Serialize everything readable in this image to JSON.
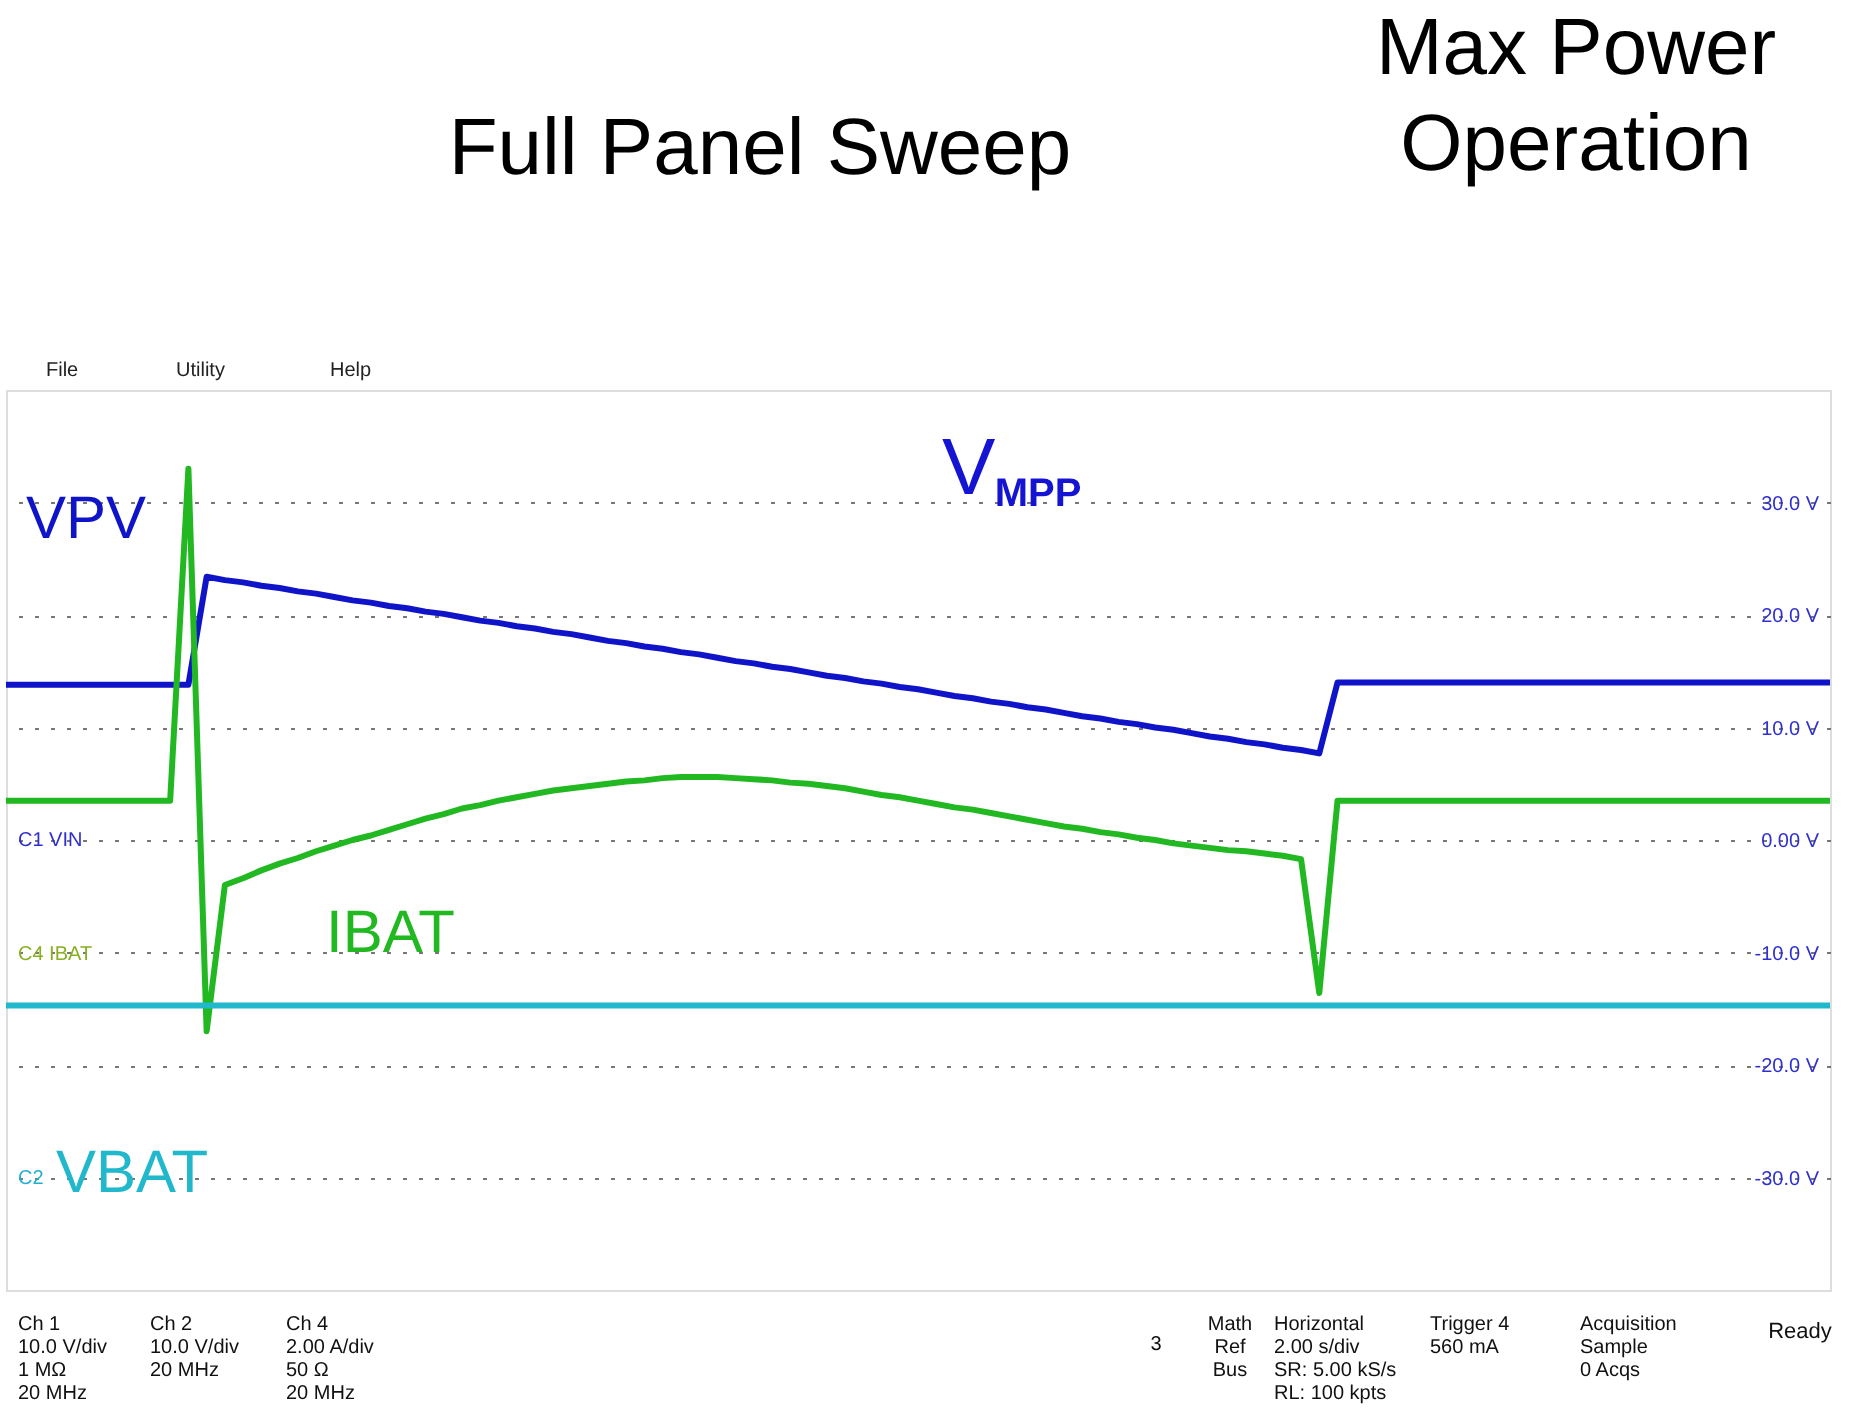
{
  "chart_data": {
    "type": "line",
    "categories": [
      null,
      null,
      null,
      null,
      null,
      null,
      null,
      null,
      null,
      null,
      null,
      null,
      null,
      null,
      null,
      null,
      null,
      null,
      null,
      null,
      null,
      null,
      null,
      null,
      null,
      null,
      null,
      null,
      null,
      null,
      null,
      null,
      null,
      null,
      null,
      null,
      null,
      null,
      null,
      null,
      null,
      null,
      null,
      null,
      null,
      null,
      null,
      null,
      null,
      null,
      null,
      null,
      null,
      null,
      null,
      null,
      null,
      null,
      null,
      null,
      null,
      null,
      null,
      null,
      null,
      null,
      null,
      null,
      null,
      null,
      null,
      null,
      null,
      null,
      null,
      null,
      null,
      null,
      null,
      null,
      null,
      null,
      null,
      null,
      null,
      null,
      null,
      null,
      null,
      null,
      null,
      null,
      null,
      null,
      null,
      null,
      null,
      null,
      null,
      null,
      null
    ],
    "series": [
      {
        "name": "VPV",
        "color": "#0f14c8",
        "values": [
          13.8,
          13.8,
          13.8,
          13.8,
          13.8,
          13.8,
          13.8,
          13.8,
          13.8,
          13.8,
          13.8,
          23.4,
          23.1,
          22.9,
          22.6,
          22.4,
          22.1,
          21.9,
          21.6,
          21.3,
          21.1,
          20.8,
          20.6,
          20.3,
          20.1,
          19.8,
          19.5,
          19.3,
          19.0,
          18.8,
          18.5,
          18.3,
          18.0,
          17.7,
          17.5,
          17.2,
          17.0,
          16.7,
          16.5,
          16.2,
          15.9,
          15.7,
          15.4,
          15.2,
          14.9,
          14.6,
          14.4,
          14.1,
          13.9,
          13.6,
          13.4,
          13.1,
          12.8,
          12.6,
          12.3,
          12.1,
          11.8,
          11.6,
          11.3,
          11.0,
          10.8,
          10.5,
          10.3,
          10.0,
          9.8,
          9.5,
          9.2,
          9.0,
          8.7,
          8.5,
          8.2,
          8.0,
          7.7,
          14.0,
          14.0,
          14.0,
          14.0,
          14.0,
          14.0,
          14.0,
          14.0,
          14.0,
          14.0,
          14.0,
          14.0,
          14.0,
          14.0,
          14.0,
          14.0,
          14.0,
          14.0,
          14.0,
          14.0,
          14.0,
          14.0,
          14.0,
          14.0,
          14.0,
          14.0,
          14.0,
          14.0
        ]
      },
      {
        "name": "IBAT",
        "color": "#22b822",
        "values": [
          3.5,
          3.5,
          3.5,
          3.5,
          3.5,
          3.5,
          3.5,
          3.5,
          3.5,
          3.5,
          33.0,
          -17.0,
          -4.0,
          -3.4,
          -2.7,
          -2.1,
          -1.6,
          -1.0,
          -0.5,
          0.0,
          0.4,
          0.9,
          1.4,
          1.9,
          2.3,
          2.8,
          3.1,
          3.5,
          3.8,
          4.1,
          4.4,
          4.6,
          4.8,
          5.0,
          5.2,
          5.3,
          5.5,
          5.6,
          5.6,
          5.6,
          5.5,
          5.4,
          5.3,
          5.1,
          5.0,
          4.8,
          4.6,
          4.3,
          4.0,
          3.8,
          3.5,
          3.2,
          2.9,
          2.7,
          2.4,
          2.1,
          1.8,
          1.5,
          1.2,
          1.0,
          0.7,
          0.5,
          0.2,
          0.0,
          -0.3,
          -0.5,
          -0.7,
          -0.9,
          -1.0,
          -1.2,
          -1.4,
          -1.7,
          -13.6,
          3.5,
          3.5,
          3.5,
          3.5,
          3.5,
          3.5,
          3.5,
          3.5,
          3.5,
          3.5,
          3.5,
          3.5,
          3.5,
          3.5,
          3.5,
          3.5,
          3.5,
          3.5,
          3.5,
          3.5,
          3.5,
          3.5,
          3.5,
          3.5,
          3.5,
          3.5,
          3.5,
          3.5
        ]
      },
      {
        "name": "VBAT",
        "color": "#22b8cc",
        "values": [
          -14.7,
          -14.7,
          -14.7,
          -14.7,
          -14.7,
          -14.7,
          -14.7,
          -14.7,
          -14.7,
          -14.7,
          -14.7,
          -14.7,
          -14.7,
          -14.7,
          -14.7,
          -14.7,
          -14.7,
          -14.7,
          -14.7,
          -14.7,
          -14.7,
          -14.7,
          -14.7,
          -14.7,
          -14.7,
          -14.7,
          -14.7,
          -14.7,
          -14.7,
          -14.7,
          -14.7,
          -14.7,
          -14.7,
          -14.7,
          -14.7,
          -14.7,
          -14.7,
          -14.7,
          -14.7,
          -14.7,
          -14.7,
          -14.7,
          -14.7,
          -14.7,
          -14.7,
          -14.7,
          -14.7,
          -14.7,
          -14.7,
          -14.7,
          -14.7,
          -14.7,
          -14.7,
          -14.7,
          -14.7,
          -14.7,
          -14.7,
          -14.7,
          -14.7,
          -14.7,
          -14.7,
          -14.7,
          -14.7,
          -14.7,
          -14.7,
          -14.7,
          -14.7,
          -14.7,
          -14.7,
          -14.7,
          -14.7,
          -14.7,
          -14.7,
          -14.7,
          -14.7,
          -14.7,
          -14.7,
          -14.7,
          -14.7,
          -14.7,
          -14.7,
          -14.7,
          -14.7,
          -14.7,
          -14.7,
          -14.7,
          -14.7,
          -14.7,
          -14.7,
          -14.7,
          -14.7,
          -14.7,
          -14.7,
          -14.7,
          -14.7,
          -14.7,
          -14.7,
          -14.7,
          -14.7,
          -14.7,
          -14.7
        ]
      }
    ],
    "ylim": [
      -40,
      40
    ],
    "yticks": [
      {
        "value": 30,
        "label": "30.0 V"
      },
      {
        "value": 20,
        "label": "20.0 V"
      },
      {
        "value": 10,
        "label": "10.0 V"
      },
      {
        "value": 0,
        "label": "0.00 V"
      },
      {
        "value": -10,
        "label": "-10.0 V"
      },
      {
        "value": -20,
        "label": "-20.0 V"
      },
      {
        "value": -30,
        "label": "-30.0 V"
      }
    ],
    "tick_labels": "y",
    "grid": "y",
    "marker": "none",
    "line_style": "solid",
    "annotations": [
      "Full Panel Sweep",
      "Max Power\nOperation",
      "V$_{MPP}$",
      "File",
      "Utility",
      "Help",
      "Ch 1\n10.0 V/div\n1 MΩ\n20 MHz",
      "Ch 2\n10.0 V/div\n20 MHz",
      "Ch 4\n2.00 A/div\n50 Ω\n20 MHz",
      "3",
      "Math\nRef\nBus",
      "Horizontal\n2.00 s/div\nSR: 5.00 kS/s\nRL: 100 kpts",
      "Trigger 4\n560 mA",
      "Acquisition\nSample\n0 Acqs",
      "Ready",
      "C1 VIN",
      "C4 IBAT",
      "C2"
    ]
  }
}
